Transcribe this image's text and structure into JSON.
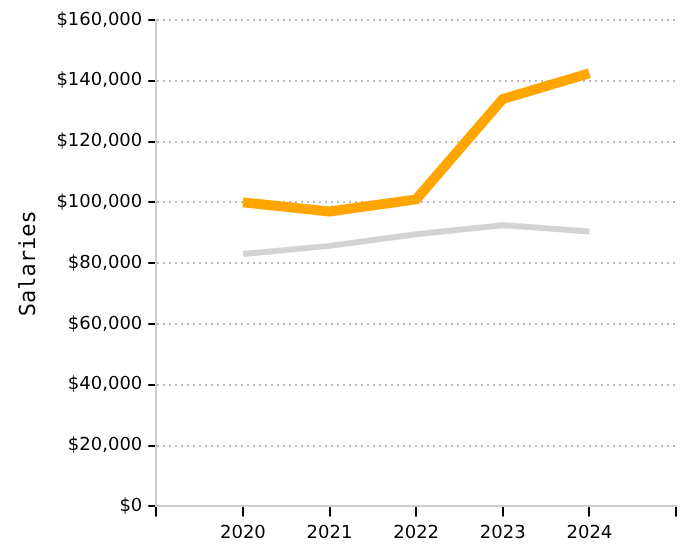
{
  "chart_data": {
    "type": "line",
    "ylabel": "Salaries",
    "x": [
      2020,
      2021,
      2022,
      2023,
      2024
    ],
    "series": [
      {
        "color": "#ffa500",
        "values": [
          100000,
          97000,
          101000,
          134000,
          142500
        ]
      },
      {
        "color": "#d3d3d3",
        "values": [
          83000,
          85700,
          89500,
          92500,
          90400
        ]
      }
    ],
    "xlim": [
      2019,
      2025
    ],
    "xticks": [
      {
        "value": 2019,
        "label": null
      },
      2020,
      2021,
      2022,
      2023,
      2024,
      {
        "value": 2025,
        "label": null
      }
    ],
    "ylim": [
      0,
      160000
    ],
    "yticks": [
      {
        "value": 0,
        "label": "$0"
      },
      {
        "value": 20000,
        "label": "$20,000"
      },
      {
        "value": 40000,
        "label": "$40,000"
      },
      {
        "value": 60000,
        "label": "$60,000"
      },
      {
        "value": 80000,
        "label": "$80,000"
      },
      {
        "value": 100000,
        "label": "$100,000"
      },
      {
        "value": 120000,
        "label": "$120,000"
      },
      {
        "value": 140000,
        "label": "$140,000"
      },
      {
        "value": 160000,
        "label": "$160,000"
      }
    ],
    "grid": "y",
    "legend": false,
    "marker": "none",
    "line_style": "solid"
  }
}
